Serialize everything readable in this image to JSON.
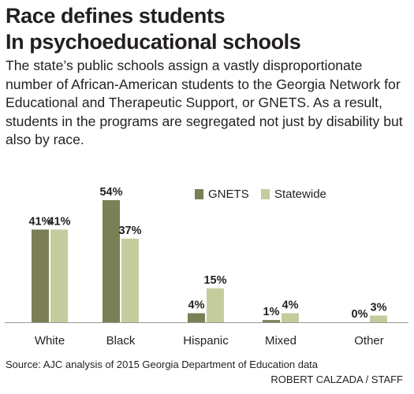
{
  "headline": {
    "line1": "Race defines students",
    "line2": "In psychoeducational schools"
  },
  "dek": "The state’s public schools assign a vastly disproportionate number of African-American students to the Georgia Network for Educational and Therapeutic Support, or GNETS. As a result, students in the programs are segregated not just by disability but also by race.",
  "source": "Source: AJC analysis of 2015 Georgia Department of Education data",
  "credit": "ROBERT CALZADA / STAFF",
  "colors": {
    "gnets": "#7b7f56",
    "statewide": "#c4cc9e",
    "text": "#231f20",
    "axis": "#999999"
  },
  "chart_data": {
    "type": "bar",
    "title": "",
    "xlabel": "",
    "ylabel": "",
    "categories": [
      "White",
      "Black",
      "Hispanic",
      "Mixed",
      "Other"
    ],
    "series": [
      {
        "name": "GNETS",
        "values": [
          41,
          54,
          4,
          1,
          0
        ]
      },
      {
        "name": "Statewide",
        "values": [
          41,
          37,
          15,
          4,
          3
        ]
      }
    ],
    "value_suffix": "%",
    "ylim": [
      0,
      54
    ],
    "grid": false,
    "legend_position": "top-right"
  }
}
